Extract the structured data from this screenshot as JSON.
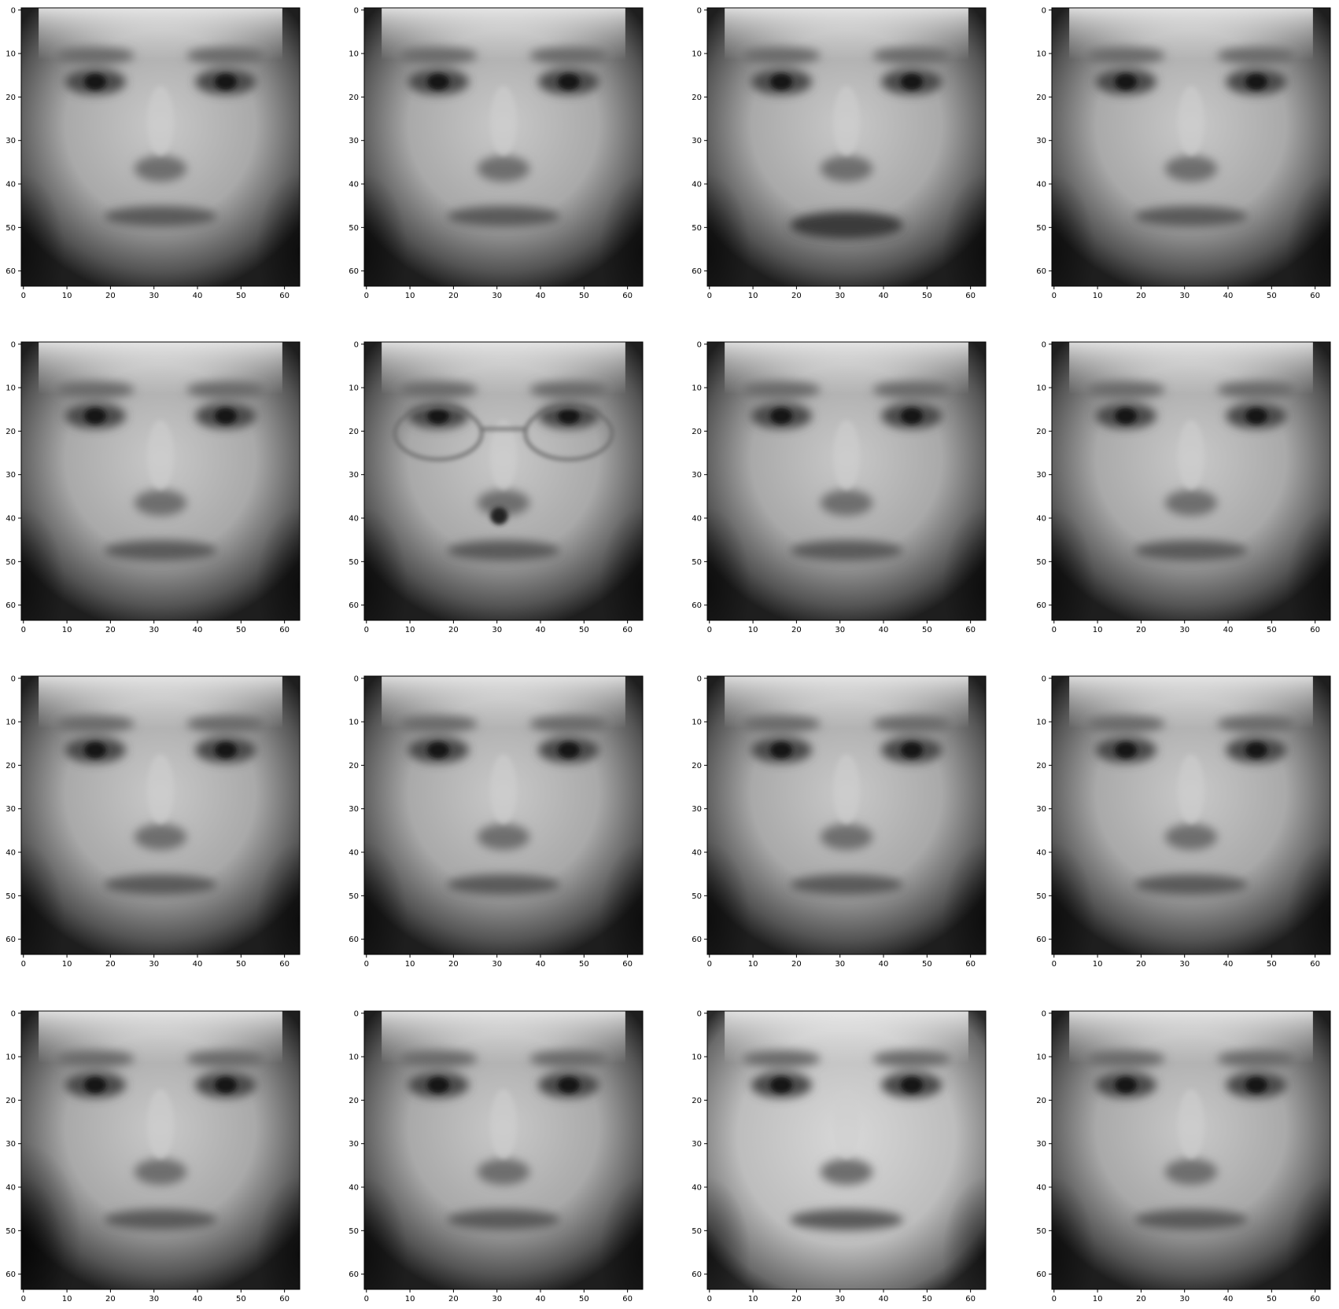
{
  "figure": {
    "grid": {
      "rows": 4,
      "cols": 4
    },
    "subplot_count": 16,
    "image_kind": "grayscale face images (64x64 pixels)",
    "image_resolution": [
      64,
      64
    ],
    "colormap": "gray",
    "x_ticks": [
      "0",
      "10",
      "20",
      "30",
      "40",
      "50",
      "60"
    ],
    "y_ticks": [
      "0",
      "10",
      "20",
      "30",
      "40",
      "50",
      "60"
    ],
    "colors": {
      "background": "#ffffff",
      "axis": "#000000",
      "tick_text": "#000000"
    }
  },
  "faces": [
    {
      "variant": "average-face",
      "mouth": "closed",
      "glasses": false
    },
    {
      "variant": "average-face",
      "mouth": "closed",
      "glasses": false
    },
    {
      "variant": "open-lips",
      "mouth": "open",
      "glasses": false
    },
    {
      "variant": "average-face",
      "mouth": "closed",
      "glasses": false
    },
    {
      "variant": "average-face",
      "mouth": "closed",
      "glasses": false
    },
    {
      "variant": "with-glasses",
      "mouth": "closed",
      "glasses": true
    },
    {
      "variant": "average-face",
      "mouth": "closed",
      "glasses": false
    },
    {
      "variant": "average-face",
      "mouth": "closed",
      "glasses": false
    },
    {
      "variant": "average-face",
      "mouth": "closed",
      "glasses": false
    },
    {
      "variant": "average-face",
      "mouth": "closed",
      "glasses": false
    },
    {
      "variant": "average-face",
      "mouth": "closed",
      "glasses": false
    },
    {
      "variant": "average-face",
      "mouth": "closed",
      "glasses": false
    },
    {
      "variant": "dark-corner",
      "mouth": "closed",
      "glasses": false
    },
    {
      "variant": "average-face",
      "mouth": "closed",
      "glasses": false
    },
    {
      "variant": "bright-face",
      "mouth": "closed",
      "glasses": false
    },
    {
      "variant": "average-face",
      "mouth": "closed",
      "glasses": false
    }
  ]
}
